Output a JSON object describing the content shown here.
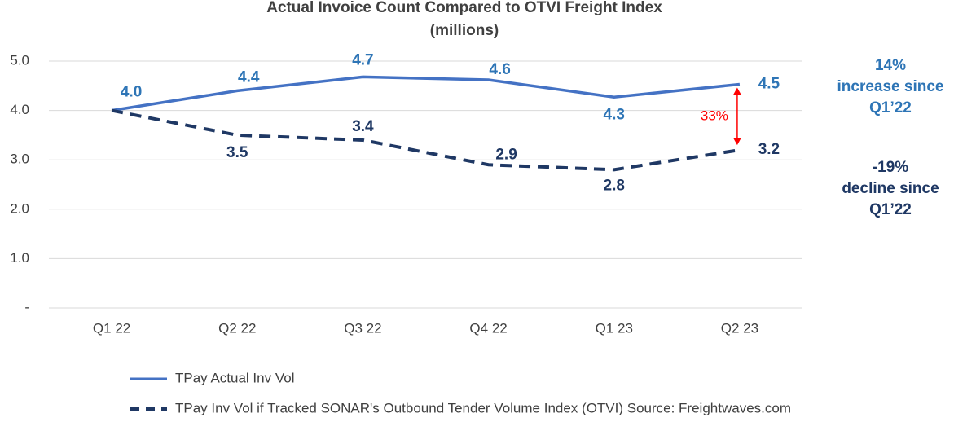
{
  "chart_data": {
    "type": "line",
    "title": [
      "Actual Invoice Count Compared to OTVI Freight Index",
      "(millions)"
    ],
    "categories": [
      "Q1 22",
      "Q2 22",
      "Q3 22",
      "Q4 22",
      "Q1 23",
      "Q2 23"
    ],
    "series": [
      {
        "name": "TPay Actual Inv Vol",
        "color": "#4472c4",
        "label_color": "#2e75b6",
        "dash": false,
        "values": [
          4.0,
          4.4,
          4.68,
          4.62,
          4.27,
          4.53
        ],
        "value_labels": [
          "4.0",
          "4.4",
          "4.7",
          "4.6",
          "4.3",
          "4.5"
        ]
      },
      {
        "name": "TPay Inv Vol if Tracked SONAR's Outbound Tender Volume Index (OTVI) Source: Freightwaves.com",
        "color": "#1f3864",
        "label_color": "#1f3864",
        "dash": true,
        "values": [
          4.0,
          3.5,
          3.4,
          2.9,
          2.8,
          3.2
        ],
        "value_labels": [
          null,
          "3.5",
          "3.4",
          "2.9",
          "2.8",
          "3.2"
        ]
      }
    ],
    "ylim": [
      0,
      5
    ],
    "yticks": [
      {
        "value": 0,
        "label": "-"
      },
      {
        "value": 1,
        "label": "1.0"
      },
      {
        "value": 2,
        "label": "2.0"
      },
      {
        "value": 3,
        "label": "3.0"
      },
      {
        "value": 4,
        "label": "4.0"
      },
      {
        "value": 5,
        "label": "5.0"
      }
    ],
    "grid": true,
    "gap_label": {
      "text": "33%",
      "color": "#ff0000"
    },
    "annotations": [
      {
        "lines": [
          "14%",
          "increase since",
          "Q1’22"
        ],
        "color": "#2e75b6"
      },
      {
        "lines": [
          "-19%",
          "decline since",
          "Q1’22"
        ],
        "color": "#1f3864"
      }
    ]
  }
}
